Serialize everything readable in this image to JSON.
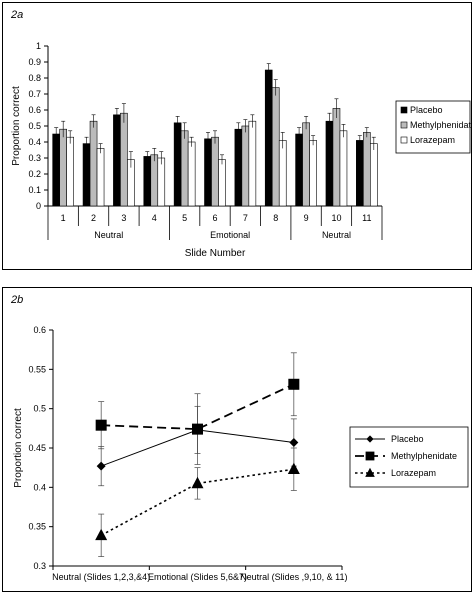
{
  "chart_data": [
    {
      "panel_label": "2a",
      "type": "bar",
      "ylabel": "Proportion correct",
      "xlabel": "Slide Number",
      "ylim": [
        0,
        1
      ],
      "yticks": [
        "0",
        "0.1",
        "0.2",
        "0.3",
        "0.4",
        "0.5",
        "0.6",
        "0.7",
        "0.8",
        "0.9",
        "1"
      ],
      "categories": [
        "1",
        "2",
        "3",
        "4",
        "5",
        "6",
        "7",
        "8",
        "9",
        "10",
        "11"
      ],
      "groups": [
        "Neutral",
        "Emotional",
        "Neutral"
      ],
      "legend_position": "right",
      "series": [
        {
          "name": "Placebo",
          "color": "#000000",
          "values": [
            0.45,
            0.39,
            0.57,
            0.31,
            0.52,
            0.42,
            0.48,
            0.85,
            0.45,
            0.53,
            0.41
          ],
          "errors": [
            0.04,
            0.04,
            0.04,
            0.03,
            0.04,
            0.04,
            0.04,
            0.04,
            0.04,
            0.05,
            0.03
          ]
        },
        {
          "name": "Methylphenidate",
          "color": "#bbbbbb",
          "values": [
            0.48,
            0.53,
            0.58,
            0.32,
            0.47,
            0.43,
            0.5,
            0.74,
            0.52,
            0.61,
            0.46
          ],
          "errors": [
            0.05,
            0.04,
            0.06,
            0.04,
            0.05,
            0.04,
            0.04,
            0.05,
            0.04,
            0.06,
            0.03
          ]
        },
        {
          "name": "Lorazepam",
          "color": "#ffffff",
          "values": [
            0.43,
            0.36,
            0.29,
            0.3,
            0.4,
            0.29,
            0.53,
            0.41,
            0.41,
            0.47,
            0.39
          ],
          "errors": [
            0.04,
            0.03,
            0.05,
            0.04,
            0.03,
            0.03,
            0.04,
            0.05,
            0.03,
            0.04,
            0.04
          ]
        }
      ]
    },
    {
      "panel_label": "2b",
      "type": "line",
      "ylabel": "Proportion correct",
      "ylim": [
        0.3,
        0.6
      ],
      "yticks": [
        "0.3",
        "0.35",
        "0.4",
        "0.45",
        "0.5",
        "0.55",
        "0.6"
      ],
      "categories": [
        "Neutral (Slides 1,2,3,&4)",
        "Emotional (Slides 5,6&7)",
        "Neutral (Slides ,9,10, & 11)"
      ],
      "legend_position": "right",
      "series": [
        {
          "name": "Placebo",
          "marker": "diamond",
          "dash": "solid",
          "values": [
            0.427,
            0.473,
            0.457
          ],
          "errors": [
            0.025,
            0.03,
            0.03
          ]
        },
        {
          "name": "Methylphenidate",
          "marker": "square",
          "dash": "long-dash",
          "values": [
            0.479,
            0.474,
            0.531
          ],
          "errors": [
            0.03,
            0.045,
            0.04
          ]
        },
        {
          "name": "Lorazepam",
          "marker": "triangle",
          "dash": "dotted",
          "values": [
            0.339,
            0.405,
            0.423
          ],
          "errors": [
            0.027,
            0.02,
            0.027
          ]
        }
      ]
    }
  ]
}
